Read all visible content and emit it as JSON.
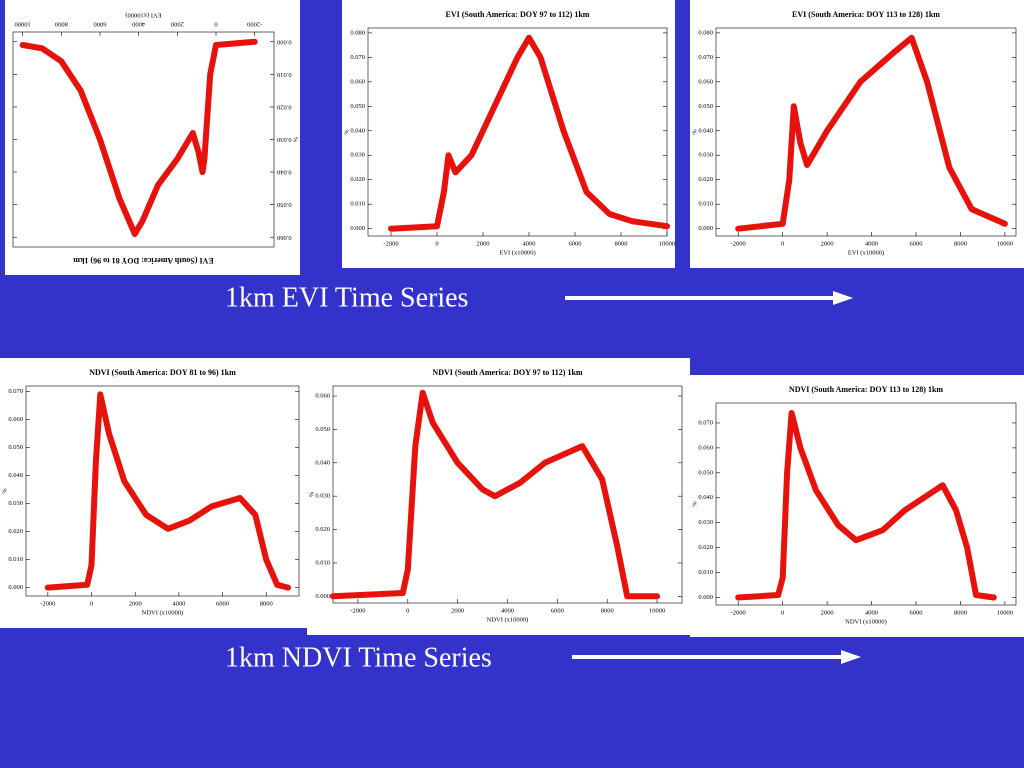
{
  "captions": [
    "1km EVI Time Series",
    "1km NDVI Time Series"
  ],
  "chart_data": [
    {
      "type": "line",
      "title": "EVI (South America: DOY 81 to 96) 1km",
      "x_label": "EVI (x10000)",
      "y_label": "%",
      "color": "#e8120c",
      "x": [
        -2000,
        0,
        300,
        600,
        700,
        900,
        1200,
        2000,
        3000,
        3800,
        4200,
        5000,
        6000,
        7000,
        8000,
        9000,
        10000
      ],
      "values": [
        0,
        0.001,
        0.01,
        0.036,
        0.04,
        0.034,
        0.028,
        0.036,
        0.044,
        0.055,
        0.059,
        0.048,
        0.03,
        0.015,
        0.006,
        0.002,
        0.001
      ],
      "xlim": [
        -3000,
        10500
      ],
      "ylim": [
        -0.003,
        0.063
      ],
      "xticks": [
        -2000,
        0,
        2000,
        4000,
        6000,
        8000,
        10000
      ],
      "yticks": [
        {
          "value": 0,
          "label": "0.000"
        },
        {
          "value": 0.01,
          "label": "0.010"
        },
        {
          "value": 0.02,
          "label": "0.020"
        },
        {
          "value": 0.03,
          "label": "0.030"
        },
        {
          "value": 0.04,
          "label": "0.040"
        },
        {
          "value": 0.05,
          "label": "0.050"
        },
        {
          "value": 0.06,
          "label": "0.060"
        }
      ]
    },
    {
      "type": "line",
      "title": "EVI (South America: DOY 97 to 112) 1km",
      "x_label": "EVI (x10000)",
      "y_label": "%",
      "color": "#e8120c",
      "x": [
        -2000,
        0,
        300,
        500,
        800,
        1500,
        2500,
        3500,
        4000,
        4500,
        5500,
        6500,
        7500,
        8500,
        10000
      ],
      "values": [
        0,
        0.001,
        0.015,
        0.03,
        0.023,
        0.03,
        0.05,
        0.07,
        0.078,
        0.07,
        0.04,
        0.015,
        0.006,
        0.003,
        0.001
      ],
      "xlim": [
        -3000,
        10000
      ],
      "ylim": [
        -0.003,
        0.082
      ],
      "xticks": [
        -2000,
        0,
        2000,
        4000,
        6000,
        8000,
        10000
      ],
      "yticks": [
        {
          "value": 0,
          "label": "0.000"
        },
        {
          "value": 0.01,
          "label": "0.010"
        },
        {
          "value": 0.02,
          "label": "0.020"
        },
        {
          "value": 0.03,
          "label": "0.030"
        },
        {
          "value": 0.04,
          "label": "0.040"
        },
        {
          "value": 0.05,
          "label": "0.050"
        },
        {
          "value": 0.06,
          "label": "0.060"
        },
        {
          "value": 0.07,
          "label": "0.070"
        },
        {
          "value": 0.08,
          "label": "0.080"
        }
      ]
    },
    {
      "type": "line",
      "title": "EVI (South America: DOY 113 to 128) 1km",
      "x_label": "EVI (x10000)",
      "y_label": "%",
      "color": "#e8120c",
      "x": [
        -2000,
        0,
        300,
        500,
        800,
        1100,
        2000,
        3500,
        5000,
        5800,
        6500,
        7500,
        8500,
        10000
      ],
      "values": [
        0,
        0.002,
        0.02,
        0.05,
        0.035,
        0.026,
        0.04,
        0.06,
        0.072,
        0.078,
        0.06,
        0.025,
        0.008,
        0.002
      ],
      "xlim": [
        -3000,
        10500
      ],
      "ylim": [
        -0.003,
        0.082
      ],
      "xticks": [
        -2000,
        0,
        2000,
        4000,
        6000,
        8000,
        10000
      ],
      "yticks": [
        {
          "value": 0,
          "label": "0.000"
        },
        {
          "value": 0.01,
          "label": "0.010"
        },
        {
          "value": 0.02,
          "label": "0.020"
        },
        {
          "value": 0.03,
          "label": "0.030"
        },
        {
          "value": 0.04,
          "label": "0.040"
        },
        {
          "value": 0.05,
          "label": "0.050"
        },
        {
          "value": 0.06,
          "label": "0.060"
        },
        {
          "value": 0.07,
          "label": "0.070"
        },
        {
          "value": 0.08,
          "label": "0.080"
        }
      ]
    },
    {
      "type": "line",
      "title": "NDVI (South America: DOY 81 to 96) 1km",
      "x_label": "NDVI (x10000)",
      "y_label": "%",
      "color": "#e8120c",
      "x": [
        -2000,
        -200,
        0,
        200,
        400,
        800,
        1500,
        2500,
        3500,
        4500,
        5500,
        6800,
        7500,
        8000,
        8500,
        9000
      ],
      "values": [
        0,
        0.001,
        0.008,
        0.045,
        0.069,
        0.055,
        0.038,
        0.026,
        0.021,
        0.024,
        0.029,
        0.032,
        0.026,
        0.01,
        0.001,
        0
      ],
      "xlim": [
        -3000,
        9500
      ],
      "ylim": [
        -0.003,
        0.072
      ],
      "xticks": [
        -2000,
        0,
        2000,
        4000,
        6000,
        8000
      ],
      "yticks": [
        {
          "value": 0,
          "label": "0.000"
        },
        {
          "value": 0.01,
          "label": "0.010"
        },
        {
          "value": 0.02,
          "label": "0.020"
        },
        {
          "value": 0.03,
          "label": "0.030"
        },
        {
          "value": 0.04,
          "label": "0.040"
        },
        {
          "value": 0.05,
          "label": "0.050"
        },
        {
          "value": 0.06,
          "label": "0.060"
        },
        {
          "value": 0.07,
          "label": "0.070"
        }
      ]
    },
    {
      "type": "line",
      "title": "NDVI (South America: DOY 97 to 112) 1km",
      "x_label": "NDVI (x10000)",
      "y_label": "%",
      "color": "#e8120c",
      "x": [
        -3000,
        -200,
        0,
        300,
        600,
        1000,
        2000,
        3000,
        3500,
        4500,
        5500,
        7000,
        7800,
        8400,
        8800,
        10000
      ],
      "values": [
        0,
        0.001,
        0.008,
        0.045,
        0.061,
        0.052,
        0.04,
        0.032,
        0.03,
        0.034,
        0.04,
        0.045,
        0.035,
        0.015,
        0,
        0
      ],
      "xlim": [
        -3000,
        11000
      ],
      "ylim": [
        -0.002,
        0.063
      ],
      "xticks": [
        -2000,
        0,
        2000,
        4000,
        6000,
        8000,
        10000
      ],
      "yticks": [
        {
          "value": 0,
          "label": "0.000"
        },
        {
          "value": 0.01,
          "label": "0.010"
        },
        {
          "value": 0.02,
          "label": "0.020"
        },
        {
          "value": 0.03,
          "label": "0.030"
        },
        {
          "value": 0.04,
          "label": "0.040"
        },
        {
          "value": 0.05,
          "label": "0.050"
        },
        {
          "value": 0.06,
          "label": "0.060"
        }
      ]
    },
    {
      "type": "line",
      "title": "NDVI (South America: DOY 113 to 128) 1km",
      "x_label": "NDVI (x10000)",
      "y_label": "%",
      "color": "#e8120c",
      "x": [
        -2000,
        -200,
        0,
        200,
        400,
        800,
        1500,
        2500,
        3300,
        4500,
        5500,
        7200,
        7800,
        8300,
        8700,
        9500
      ],
      "values": [
        0,
        0.001,
        0.008,
        0.05,
        0.074,
        0.06,
        0.043,
        0.029,
        0.023,
        0.027,
        0.035,
        0.045,
        0.035,
        0.02,
        0.001,
        0
      ],
      "xlim": [
        -3000,
        10500
      ],
      "ylim": [
        -0.003,
        0.078
      ],
      "xticks": [
        -2000,
        0,
        2000,
        4000,
        6000,
        8000,
        10000
      ],
      "yticks": [
        {
          "value": 0,
          "label": "0.000"
        },
        {
          "value": 0.01,
          "label": "0.010"
        },
        {
          "value": 0.02,
          "label": "0.020"
        },
        {
          "value": 0.03,
          "label": "0.030"
        },
        {
          "value": 0.04,
          "label": "0.040"
        },
        {
          "value": 0.05,
          "label": "0.050"
        },
        {
          "value": 0.06,
          "label": "0.060"
        },
        {
          "value": 0.07,
          "label": "0.070"
        }
      ]
    }
  ]
}
